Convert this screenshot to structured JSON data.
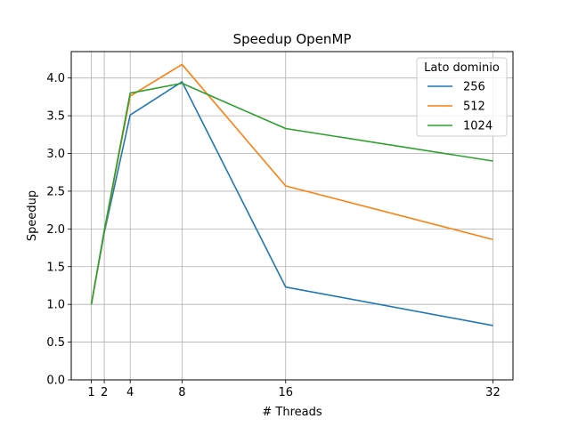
{
  "chart_data": {
    "type": "line",
    "title": "Speedup OpenMP",
    "xlabel": "# Threads",
    "ylabel": "Speedup",
    "x": [
      1,
      2,
      4,
      8,
      16,
      32
    ],
    "xticks": [
      "1",
      "2",
      "4",
      "8",
      "16",
      "32"
    ],
    "yticks": [
      "0.0",
      "0.5",
      "1.0",
      "1.5",
      "2.0",
      "2.5",
      "3.0",
      "3.5",
      "4.0"
    ],
    "xlim": [
      -0.55,
      33.55
    ],
    "ylim": [
      0.0,
      4.35
    ],
    "grid": true,
    "legend": {
      "title": "Lato dominio",
      "placement": "top-right"
    },
    "series": [
      {
        "name": "256",
        "color": "#1f77b4",
        "values": [
          1.0,
          1.95,
          3.51,
          3.95,
          1.23,
          0.72
        ]
      },
      {
        "name": "512",
        "color": "#ff7f0e",
        "values": [
          1.0,
          1.97,
          3.76,
          4.18,
          2.57,
          1.86
        ]
      },
      {
        "name": "1024",
        "color": "#2ca02c",
        "values": [
          1.0,
          1.98,
          3.8,
          3.93,
          3.33,
          2.9
        ]
      }
    ]
  }
}
